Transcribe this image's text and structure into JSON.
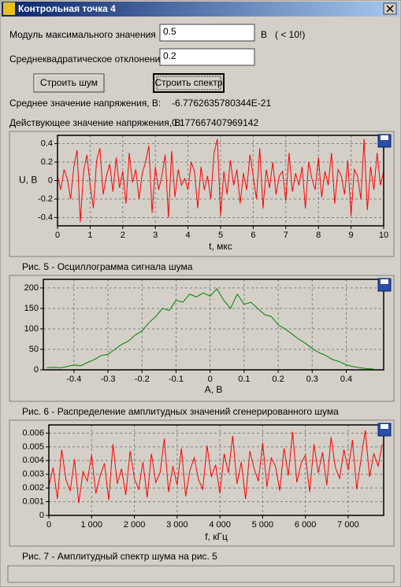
{
  "window": {
    "title": "Контрольная точка 4"
  },
  "form": {
    "max_label": "Модуль максимального значения",
    "max_value": "0.5",
    "max_unit": "В   ( < 10!)",
    "sd_label": "Среднеквадратическое отклонение",
    "sd_value": "0.2",
    "buttons": [
      "Строить шум",
      "Строить спектр"
    ],
    "mean_label": "Среднее значение напряжения, В:",
    "mean_value": "-6.7762635780344E-21",
    "rms_label": "Действующее значение напряжения, В:",
    "rms_value": "0.177667407969142"
  },
  "captions": [
    "Рис. 5 - Осциллограмма сигнала шума",
    "Рис. 6 - Распределение амплитудных значений сгенерированного шума",
    "Рис. 7 - Амплитудный спектр шума на рис. 5"
  ],
  "chart_data": [
    {
      "type": "line",
      "x_label": "t, мкс",
      "y_label": "U, В",
      "color": "#ff0000",
      "grid": true,
      "xlim": [
        0,
        10
      ],
      "xticks": [
        0,
        1,
        2,
        3,
        4,
        5,
        6,
        7,
        8,
        9,
        10
      ],
      "ylim": [
        -0.49,
        0.49
      ],
      "yticks": [
        -0.4,
        -0.2,
        0,
        0.2,
        0.4
      ],
      "x": [
        0,
        0.1,
        0.2,
        0.3,
        0.4,
        0.5,
        0.6,
        0.7,
        0.8,
        0.9,
        1,
        1.1,
        1.2,
        1.3,
        1.4,
        1.5,
        1.6,
        1.7,
        1.8,
        1.9,
        2,
        2.1,
        2.2,
        2.3,
        2.4,
        2.5,
        2.6,
        2.7,
        2.8,
        2.9,
        3,
        3.1,
        3.2,
        3.3,
        3.4,
        3.5,
        3.6,
        3.7,
        3.8,
        3.9,
        4,
        4.1,
        4.2,
        4.3,
        4.4,
        4.5,
        4.6,
        4.7,
        4.8,
        4.9,
        5,
        5.1,
        5.2,
        5.3,
        5.4,
        5.5,
        5.6,
        5.7,
        5.8,
        5.9,
        6,
        6.1,
        6.2,
        6.3,
        6.4,
        6.5,
        6.6,
        6.7,
        6.8,
        6.9,
        7,
        7.1,
        7.2,
        7.3,
        7.4,
        7.5,
        7.6,
        7.7,
        7.8,
        7.9,
        8,
        8.1,
        8.2,
        8.3,
        8.4,
        8.5,
        8.6,
        8.7,
        8.8,
        8.9,
        9,
        9.1,
        9.2,
        9.3,
        9.4,
        9.5,
        9.6,
        9.7,
        9.8,
        9.9,
        10
      ],
      "values": [
        0.05,
        -0.1,
        0.12,
        0.02,
        -0.2,
        0.15,
        0.33,
        -0.45,
        0.1,
        0.28,
        -0.05,
        -0.3,
        0.22,
        0.35,
        -0.15,
        0.05,
        0.18,
        -0.12,
        0.25,
        -0.08,
        0.1,
        -0.25,
        0.3,
        -0.02,
        0.12,
        -0.2,
        0.08,
        0.2,
        0.38,
        -0.35,
        0.15,
        -0.1,
        0.05,
        0.28,
        -0.4,
        0.32,
        -0.18,
        0.12,
        -0.05,
        0.02,
        -0.1,
        0.2,
        0.1,
        -0.3,
        0.15,
        -0.1,
        0.05,
        -0.2,
        0.3,
        0.45,
        -0.38,
        0.1,
        -0.15,
        0.22,
        -0.05,
        0.12,
        -0.25,
        0.08,
        -0.1,
        0.28,
        0.05,
        -0.2,
        0.35,
        -0.3,
        0.12,
        -0.08,
        0.2,
        -0.15,
        0.05,
        0.1,
        -0.22,
        0.3,
        -0.12,
        0.08,
        -0.05,
        0.15,
        -0.3,
        0.2,
        0.02,
        -0.1,
        0.25,
        -0.18,
        0.1,
        -0.05,
        0.3,
        -0.25,
        0.12,
        0.05,
        -0.15,
        0.22,
        -0.38,
        0.12,
        0.05,
        -0.2,
        0.45,
        -0.32,
        0.15,
        -0.1,
        0.3,
        -0.05,
        0.1
      ]
    },
    {
      "type": "line",
      "x_label": "A, В",
      "color": "#008000",
      "grid": true,
      "xlim": [
        -0.49,
        0.51
      ],
      "xticks": [
        -0.4,
        -0.3,
        -0.2,
        -0.1,
        0,
        0.1,
        0.2,
        0.3,
        0.4
      ],
      "ylim": [
        0,
        221
      ],
      "yticks": [
        0,
        50,
        100,
        150,
        200
      ],
      "x": [
        -0.48,
        -0.46,
        -0.44,
        -0.42,
        -0.4,
        -0.38,
        -0.36,
        -0.34,
        -0.32,
        -0.3,
        -0.28,
        -0.26,
        -0.24,
        -0.22,
        -0.2,
        -0.18,
        -0.16,
        -0.14,
        -0.12,
        -0.1,
        -0.08,
        -0.06,
        -0.04,
        -0.02,
        0,
        0.02,
        0.04,
        0.06,
        0.08,
        0.1,
        0.12,
        0.14,
        0.16,
        0.18,
        0.2,
        0.22,
        0.24,
        0.26,
        0.28,
        0.3,
        0.32,
        0.34,
        0.36,
        0.38,
        0.4,
        0.42,
        0.44,
        0.46,
        0.48
      ],
      "values": [
        5,
        6,
        5,
        8,
        12,
        10,
        18,
        25,
        35,
        38,
        50,
        62,
        70,
        85,
        95,
        115,
        130,
        150,
        145,
        170,
        165,
        185,
        178,
        188,
        180,
        198,
        170,
        150,
        185,
        160,
        165,
        150,
        135,
        130,
        110,
        100,
        88,
        75,
        65,
        52,
        42,
        35,
        25,
        20,
        12,
        8,
        5,
        3,
        2
      ]
    },
    {
      "type": "line",
      "x_label": "f, кГц",
      "color": "#ff0000",
      "grid": true,
      "xlim": [
        0,
        7830
      ],
      "xticks": [
        0,
        {
          "value": 1000,
          "label": "1 000"
        },
        {
          "value": 2000,
          "label": "2 000"
        },
        {
          "value": 3000,
          "label": "3 000"
        },
        {
          "value": 4000,
          "label": "4 000"
        },
        {
          "value": 5000,
          "label": "5 000"
        },
        {
          "value": 6000,
          "label": "6 000"
        },
        {
          "value": 7000,
          "label": "7 000"
        }
      ],
      "ylim": [
        0,
        0.0066
      ],
      "yticks": [
        0,
        0.001,
        0.002,
        0.003,
        0.004,
        0.005,
        0.006
      ],
      "x": [
        0,
        100,
        200,
        300,
        400,
        500,
        600,
        700,
        800,
        900,
        1000,
        1100,
        1200,
        1300,
        1400,
        1500,
        1600,
        1700,
        1800,
        1900,
        2000,
        2100,
        2200,
        2300,
        2400,
        2500,
        2600,
        2700,
        2800,
        2900,
        3000,
        3100,
        3200,
        3300,
        3400,
        3500,
        3600,
        3700,
        3800,
        3900,
        4000,
        4100,
        4200,
        4300,
        4400,
        4500,
        4600,
        4700,
        4800,
        4900,
        5000,
        5100,
        5200,
        5300,
        5400,
        5500,
        5600,
        5700,
        5800,
        5900,
        6000,
        6100,
        6200,
        6300,
        6400,
        6500,
        6600,
        6700,
        6800,
        6900,
        7000,
        7100,
        7200,
        7300,
        7400,
        7500,
        7600,
        7700,
        7800
      ],
      "values": [
        0.0021,
        0.0035,
        0.0012,
        0.0048,
        0.0026,
        0.0018,
        0.0041,
        0.0009,
        0.0032,
        0.0025,
        0.0044,
        0.0016,
        0.0029,
        0.0038,
        0.0011,
        0.0052,
        0.0023,
        0.0034,
        0.0015,
        0.0047,
        0.0027,
        0.0019,
        0.0039,
        0.0013,
        0.0045,
        0.0024,
        0.0031,
        0.0056,
        0.0017,
        0.0036,
        0.0022,
        0.0049,
        0.0014,
        0.0033,
        0.0042,
        0.0026,
        0.0019,
        0.0051,
        0.0028,
        0.0037,
        0.0016,
        0.0045,
        0.0031,
        0.0058,
        0.0023,
        0.0039,
        0.0012,
        0.0047,
        0.0034,
        0.0025,
        0.0053,
        0.0021,
        0.0042,
        0.0036,
        0.0018,
        0.0049,
        0.0029,
        0.0061,
        0.0024,
        0.0038,
        0.0044,
        0.0017,
        0.0052,
        0.0031,
        0.0046,
        0.0022,
        0.0057,
        0.0035,
        0.0027,
        0.0048,
        0.0033,
        0.0055,
        0.0019,
        0.0041,
        0.0062,
        0.0028,
        0.0045,
        0.0036,
        0.0052
      ]
    }
  ]
}
